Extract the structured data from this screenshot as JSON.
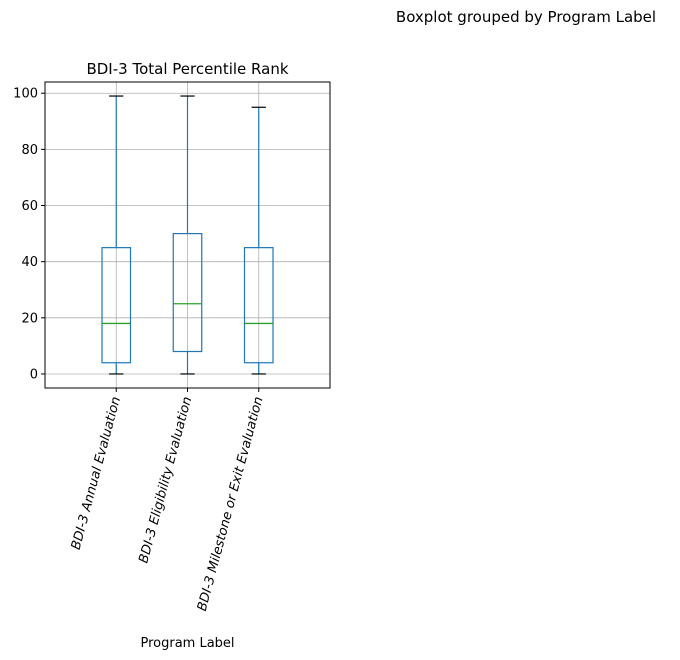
{
  "suptitle": "Boxplot grouped by Program Label",
  "chart_data": {
    "type": "box",
    "title": "BDI-3 Total Percentile Rank",
    "xlabel": "Program Label",
    "ylabel": "",
    "ylim": [
      -5,
      104
    ],
    "yticks": [
      0,
      20,
      40,
      60,
      80,
      100
    ],
    "grid": true,
    "categories": [
      "BDI-3 Annual Evaluation",
      "BDI-3 Eligibility Evaluation",
      "BDI-3 Milestone or Exit Evaluation"
    ],
    "boxes": [
      {
        "whisker_low": 0,
        "q1": 4,
        "median": 18,
        "q3": 45,
        "whisker_high": 99
      },
      {
        "whisker_low": 0,
        "q1": 8,
        "median": 25,
        "q3": 50,
        "whisker_high": 99
      },
      {
        "whisker_low": 0,
        "q1": 4,
        "median": 18,
        "q3": 45,
        "whisker_high": 95
      }
    ],
    "colors": {
      "box": "#1f77b4",
      "median": "#2ca02c",
      "cap": "#000000",
      "grid": "#b0b0b0"
    }
  }
}
